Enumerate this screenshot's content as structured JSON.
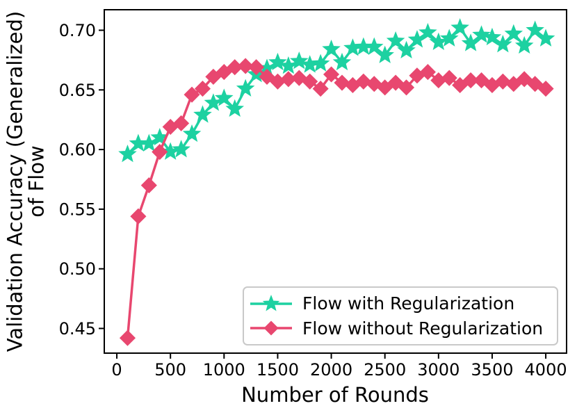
{
  "chart_data": {
    "type": "line",
    "title": "",
    "xlabel": "Number of Rounds",
    "ylabel": "Validation Accuracy (Generalized)\nof Flow",
    "ylabel_lines": [
      "Validation Accuracy (Generalized)",
      "of Flow"
    ],
    "x_ticks": [
      0,
      500,
      1000,
      1500,
      2000,
      2500,
      3000,
      3500,
      4000
    ],
    "y_ticks": [
      0.45,
      0.5,
      0.55,
      0.6,
      0.65,
      0.7
    ],
    "y_tick_labels": [
      "0.45",
      "0.50",
      "0.55",
      "0.60",
      "0.65",
      "0.70"
    ],
    "xlim": [
      -117,
      4194
    ],
    "ylim": [
      0.4293,
      0.7172
    ],
    "grid": false,
    "legend_position": "lower right",
    "axes_color": "#000000",
    "x": [
      100,
      200,
      300,
      400,
      500,
      600,
      700,
      800,
      900,
      1000,
      1100,
      1200,
      1300,
      1400,
      1500,
      1600,
      1700,
      1800,
      1900,
      2000,
      2100,
      2200,
      2300,
      2400,
      2500,
      2600,
      2700,
      2800,
      2900,
      3000,
      3100,
      3200,
      3300,
      3400,
      3500,
      3600,
      3700,
      3800,
      3900,
      4000
    ],
    "series": [
      {
        "name": "Flow with Regularization",
        "color": "#1dd1a1",
        "marker": "star",
        "values": [
          0.596,
          0.605,
          0.605,
          0.61,
          0.598,
          0.6,
          0.613,
          0.629,
          0.639,
          0.643,
          0.634,
          0.651,
          0.663,
          0.668,
          0.673,
          0.67,
          0.674,
          0.671,
          0.672,
          0.684,
          0.673,
          0.685,
          0.686,
          0.686,
          0.679,
          0.691,
          0.683,
          0.692,
          0.698,
          0.69,
          0.693,
          0.702,
          0.689,
          0.696,
          0.694,
          0.688,
          0.697,
          0.687,
          0.7,
          0.693
        ]
      },
      {
        "name": "Flow without Regularization",
        "color": "#e8476f",
        "marker": "diamond",
        "values": [
          0.442,
          0.544,
          0.57,
          0.598,
          0.619,
          0.622,
          0.646,
          0.651,
          0.661,
          0.665,
          0.669,
          0.67,
          0.669,
          0.661,
          0.657,
          0.659,
          0.66,
          0.657,
          0.651,
          0.663,
          0.656,
          0.654,
          0.657,
          0.655,
          0.652,
          0.656,
          0.652,
          0.662,
          0.665,
          0.658,
          0.66,
          0.654,
          0.658,
          0.658,
          0.654,
          0.657,
          0.655,
          0.659,
          0.655,
          0.651
        ]
      }
    ]
  }
}
